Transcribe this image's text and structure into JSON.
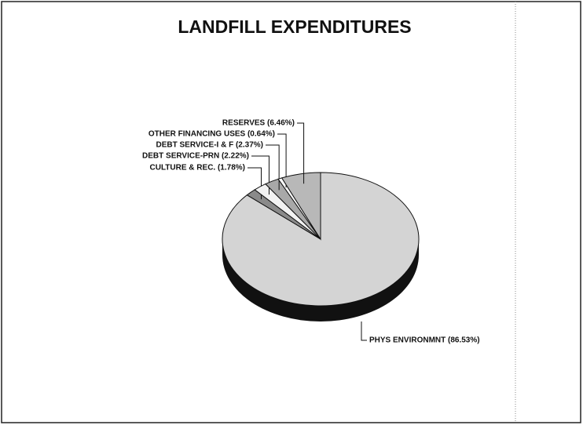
{
  "chart_data": {
    "type": "pie",
    "title": "LANDFILL EXPENDITURES",
    "categories": [
      "PHYS ENVIRONMNT (86.53%)",
      "CULTURE & REC. (1.78%)",
      "DEBT SERVICE-PRN (2.22%)",
      "DEBT SERVICE-I & F (2.37%)",
      "OTHER FINANCING USES (0.64%)",
      "RESERVES (6.46%)"
    ],
    "values": [
      86.53,
      1.78,
      2.22,
      2.37,
      0.64,
      6.46
    ],
    "colors": [
      "#d4d4d4",
      "#8a8a8a",
      "#f2f2f2",
      "#a8a8a8",
      "#ffffff",
      "#b8b8b8"
    ]
  }
}
